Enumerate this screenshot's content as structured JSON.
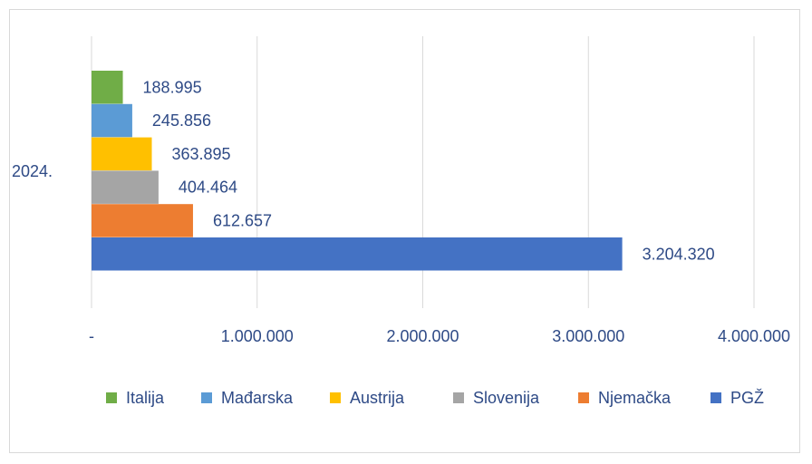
{
  "chart_data": {
    "type": "bar",
    "orientation": "horizontal",
    "categories": [
      "2024."
    ],
    "series": [
      {
        "name": "Italija",
        "values": [
          188995
        ],
        "label": "188.995",
        "color": "#70ad47"
      },
      {
        "name": "Mađarska",
        "values": [
          245856
        ],
        "label": "245.856",
        "color": "#5b9bd5"
      },
      {
        "name": "Austrija",
        "values": [
          363895
        ],
        "label": "363.895",
        "color": "#ffc000"
      },
      {
        "name": "Slovenija",
        "values": [
          404464
        ],
        "label": "404.464",
        "color": "#a5a5a5"
      },
      {
        "name": "Njemačka",
        "values": [
          612657
        ],
        "label": "612.657",
        "color": "#ed7d31"
      },
      {
        "name": "PGŽ",
        "values": [
          3204320
        ],
        "label": "3.204.320",
        "color": "#4472c4"
      }
    ],
    "xlim": [
      0,
      4000000
    ],
    "x_ticks": [
      {
        "value": 0,
        "label": "-"
      },
      {
        "value": 1000000,
        "label": "1.000.000"
      },
      {
        "value": 2000000,
        "label": "2.000.000"
      },
      {
        "value": 3000000,
        "label": "3.000.000"
      },
      {
        "value": 4000000,
        "label": "4.000.000"
      }
    ],
    "grid": true,
    "legend": "bottom"
  }
}
